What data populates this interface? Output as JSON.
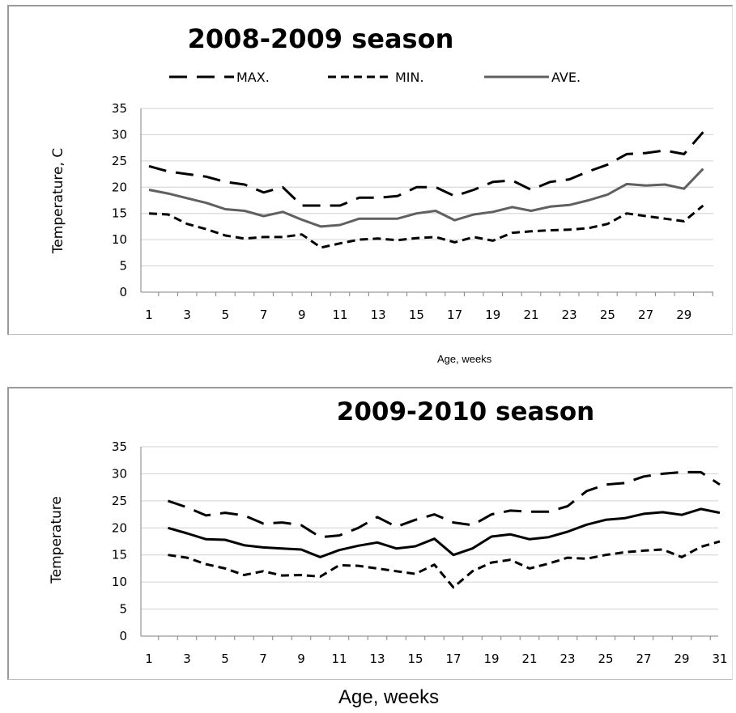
{
  "chart_data": [
    {
      "type": "line",
      "title": "2008-2009 season",
      "xlabel": "Age, weeks",
      "ylabel": "Temperature, C",
      "ylim": [
        0,
        35
      ],
      "yticks": [
        "0",
        "5",
        "10",
        "15",
        "20",
        "25",
        "30",
        "35"
      ],
      "xticks": [
        "1",
        "3",
        "5",
        "7",
        "9",
        "11",
        "13",
        "15",
        "17",
        "19",
        "21",
        "23",
        "25",
        "27",
        "29"
      ],
      "grid": true,
      "legend": "top",
      "x": [
        1,
        2,
        3,
        4,
        5,
        6,
        7,
        8,
        9,
        10,
        11,
        12,
        13,
        14,
        15,
        16,
        17,
        18,
        19,
        20,
        21,
        22,
        23,
        24,
        25,
        26,
        27,
        28,
        29,
        30
      ],
      "series": [
        {
          "name": "MAX.",
          "style": "long-dash",
          "color": "#000000",
          "values": [
            24,
            23,
            22.5,
            22,
            21,
            20.5,
            19,
            20,
            16.5,
            16.5,
            16.5,
            18,
            18,
            18.3,
            20,
            20,
            18.3,
            19.5,
            21,
            21.3,
            19.5,
            21,
            21.5,
            23,
            24.3,
            26.3,
            26.5,
            27,
            26.3,
            30.5
          ]
        },
        {
          "name": "MIN.",
          "style": "short-dash",
          "color": "#000000",
          "values": [
            15,
            14.8,
            13,
            12,
            10.8,
            10.2,
            10.5,
            10.5,
            11,
            8.5,
            9.3,
            10,
            10.2,
            9.9,
            10.3,
            10.5,
            9.5,
            10.5,
            9.8,
            11.3,
            11.6,
            11.8,
            11.9,
            12.2,
            13,
            15,
            14.5,
            14,
            13.5,
            16.5
          ]
        },
        {
          "name": "AVE.",
          "style": "solid",
          "color": "#606060",
          "values": [
            19.5,
            18.8,
            17.9,
            17,
            15.8,
            15.5,
            14.5,
            15.3,
            13.8,
            12.5,
            12.8,
            14,
            14,
            14,
            15,
            15.5,
            13.7,
            14.8,
            15.3,
            16.2,
            15.5,
            16.3,
            16.6,
            17.5,
            18.6,
            20.6,
            20.3,
            20.5,
            19.7,
            23.5
          ]
        }
      ]
    },
    {
      "type": "line",
      "title": "2009-2010 season",
      "xlabel": "Age, weeks",
      "ylabel": "Temperature",
      "ylim": [
        0,
        35
      ],
      "yticks": [
        "0",
        "5",
        "10",
        "15",
        "20",
        "25",
        "30",
        "35"
      ],
      "xticks": [
        "1",
        "3",
        "5",
        "7",
        "9",
        "11",
        "13",
        "15",
        "17",
        "19",
        "21",
        "23",
        "25",
        "27",
        "29",
        "31"
      ],
      "grid": true,
      "x": [
        2,
        3,
        4,
        5,
        6,
        7,
        8,
        9,
        10,
        11,
        12,
        13,
        14,
        15,
        16,
        17,
        18,
        19,
        20,
        21,
        22,
        23,
        24,
        25,
        26,
        27,
        28,
        29,
        30,
        31
      ],
      "series": [
        {
          "style": "long-dash",
          "color": "#000000",
          "values": [
            25,
            23.8,
            22.3,
            22.8,
            22.3,
            20.8,
            21,
            20.5,
            18.3,
            18.6,
            20,
            22,
            20.2,
            21.5,
            22.5,
            21,
            20.5,
            22.5,
            23.2,
            23,
            23,
            24,
            26.8,
            28,
            28.3,
            29.5,
            30,
            30.3,
            30.3,
            28
          ]
        },
        {
          "style": "short-dash",
          "color": "#000000",
          "values": [
            15,
            14.5,
            13.3,
            12.5,
            11.3,
            12,
            11.2,
            11.3,
            11,
            13.1,
            13,
            12.5,
            12,
            11.5,
            13.2,
            9,
            12,
            13.6,
            14.1,
            12.5,
            13.4,
            14.5,
            14.3,
            15,
            15.5,
            15.8,
            16,
            14.6,
            16.5,
            17.5
          ]
        },
        {
          "style": "solid",
          "color": "#000000",
          "values": [
            20,
            19,
            17.9,
            17.8,
            16.8,
            16.4,
            16.2,
            16,
            14.6,
            15.9,
            16.7,
            17.3,
            16.2,
            16.6,
            18,
            15,
            16.2,
            18.4,
            18.8,
            17.9,
            18.3,
            19.3,
            20.6,
            21.5,
            21.8,
            22.6,
            22.9,
            22.4,
            23.5,
            22.8
          ]
        }
      ]
    }
  ]
}
